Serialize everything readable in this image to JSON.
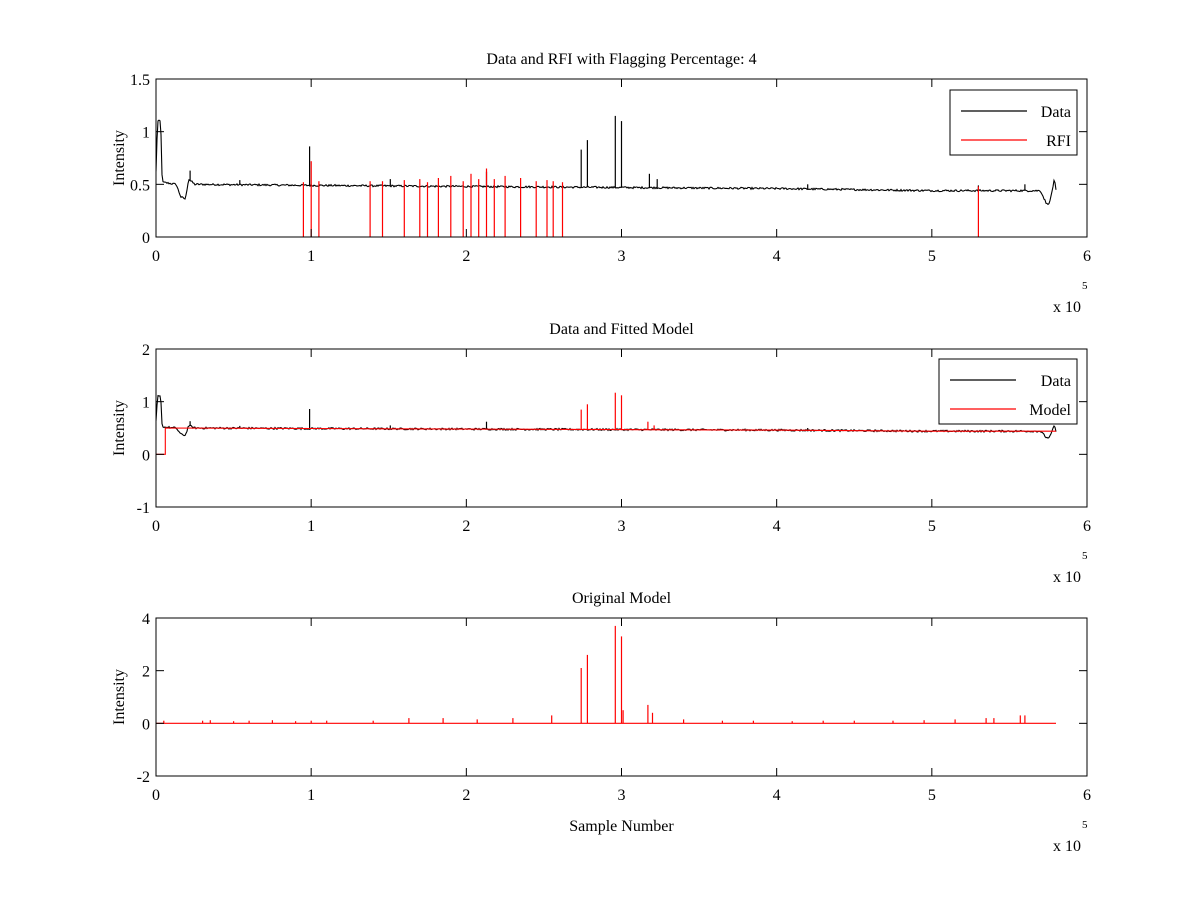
{
  "figure": {
    "background": "#ffffff"
  },
  "colors": {
    "data": "#000000",
    "rfi": "#ff0000",
    "model": "#ff0000"
  },
  "chart_data": [
    {
      "type": "line",
      "title": "Data and RFI with Flagging Percentage: 4",
      "xlabel": "",
      "ylabel": "Intensity",
      "xlim": [
        0,
        6
      ],
      "ylim": [
        0,
        1.5
      ],
      "x_ticks": [
        "0",
        "1",
        "2",
        "3",
        "4",
        "5",
        "6"
      ],
      "y_ticks": [
        "0",
        "0.5",
        "1",
        "1.5"
      ],
      "x_exponent_label": "x 10",
      "x_exponent_power": "5",
      "legend": {
        "position": "top-right",
        "entries": [
          "Data",
          "RFI"
        ]
      },
      "series": [
        {
          "name": "Data",
          "color": "#000000",
          "baseline": [
            [
              0,
              0.62
            ],
            [
              0.01,
              1.1
            ],
            [
              0.03,
              1.1
            ],
            [
              0.04,
              0.52
            ],
            [
              0.13,
              0.5
            ],
            [
              0.16,
              0.38
            ],
            [
              0.19,
              0.36
            ],
            [
              0.21,
              0.55
            ],
            [
              0.25,
              0.5
            ],
            [
              1,
              0.49
            ],
            [
              2,
              0.48
            ],
            [
              3,
              0.47
            ],
            [
              4,
              0.46
            ],
            [
              5,
              0.44
            ],
            [
              5.5,
              0.44
            ],
            [
              5.7,
              0.44
            ],
            [
              5.74,
              0.31
            ],
            [
              5.76,
              0.33
            ],
            [
              5.79,
              0.55
            ],
            [
              5.8,
              0.44
            ]
          ],
          "spikes": [
            [
              0.22,
              0.63
            ],
            [
              0.54,
              0.54
            ],
            [
              0.99,
              0.86
            ],
            [
              1.51,
              0.55
            ],
            [
              2.13,
              0.62
            ],
            [
              2.74,
              0.83
            ],
            [
              2.78,
              0.92
            ],
            [
              2.96,
              1.15
            ],
            [
              3.0,
              1.1
            ],
            [
              3.18,
              0.6
            ],
            [
              3.23,
              0.55
            ],
            [
              4.2,
              0.5
            ],
            [
              5.3,
              0.49
            ],
            [
              5.6,
              0.5
            ]
          ]
        },
        {
          "name": "RFI",
          "color": "#ff0000",
          "spikes": [
            [
              0.95,
              0.52
            ],
            [
              1.0,
              0.72
            ],
            [
              1.05,
              0.53
            ],
            [
              1.38,
              0.53
            ],
            [
              1.46,
              0.53
            ],
            [
              1.6,
              0.54
            ],
            [
              1.7,
              0.55
            ],
            [
              1.75,
              0.52
            ],
            [
              1.82,
              0.56
            ],
            [
              1.9,
              0.58
            ],
            [
              1.98,
              0.53
            ],
            [
              2.03,
              0.6
            ],
            [
              2.08,
              0.55
            ],
            [
              2.13,
              0.65
            ],
            [
              2.18,
              0.55
            ],
            [
              2.25,
              0.58
            ],
            [
              2.35,
              0.56
            ],
            [
              2.45,
              0.53
            ],
            [
              2.52,
              0.54
            ],
            [
              2.56,
              0.53
            ],
            [
              2.62,
              0.52
            ],
            [
              5.3,
              0.48
            ]
          ]
        }
      ]
    },
    {
      "type": "line",
      "title": "Data and Fitted Model",
      "xlabel": "",
      "ylabel": "Intensity",
      "xlim": [
        0,
        6
      ],
      "ylim": [
        -1,
        2
      ],
      "x_ticks": [
        "0",
        "1",
        "2",
        "3",
        "4",
        "5",
        "6"
      ],
      "y_ticks": [
        "-1",
        "0",
        "1",
        "2"
      ],
      "x_exponent_label": "x 10",
      "x_exponent_power": "5",
      "legend": {
        "position": "top-right",
        "entries": [
          "Data",
          "Model"
        ]
      },
      "series": [
        {
          "name": "Data",
          "color": "#000000",
          "baseline": [
            [
              0,
              0.62
            ],
            [
              0.01,
              1.1
            ],
            [
              0.03,
              1.1
            ],
            [
              0.04,
              0.52
            ],
            [
              0.13,
              0.5
            ],
            [
              0.16,
              0.38
            ],
            [
              0.19,
              0.36
            ],
            [
              0.21,
              0.55
            ],
            [
              0.25,
              0.5
            ],
            [
              1,
              0.49
            ],
            [
              2,
              0.48
            ],
            [
              3,
              0.47
            ],
            [
              4,
              0.46
            ],
            [
              5,
              0.44
            ],
            [
              5.5,
              0.44
            ],
            [
              5.7,
              0.44
            ],
            [
              5.74,
              0.31
            ],
            [
              5.76,
              0.33
            ],
            [
              5.79,
              0.55
            ],
            [
              5.8,
              0.44
            ]
          ],
          "spikes": [
            [
              0.22,
              0.63
            ],
            [
              0.54,
              0.54
            ],
            [
              0.99,
              0.86
            ],
            [
              1.51,
              0.55
            ],
            [
              2.13,
              0.62
            ],
            [
              4.2,
              0.5
            ]
          ]
        },
        {
          "name": "Model",
          "color": "#ff0000",
          "baseline": [
            [
              0,
              0.0
            ],
            [
              0.06,
              0.0
            ],
            [
              0.06,
              0.5
            ],
            [
              1,
              0.49
            ],
            [
              2,
              0.48
            ],
            [
              3,
              0.47
            ],
            [
              4,
              0.46
            ],
            [
              5,
              0.44
            ],
            [
              5.8,
              0.44
            ]
          ],
          "spikes": [
            [
              2.74,
              0.85
            ],
            [
              2.78,
              0.95
            ],
            [
              2.96,
              1.17
            ],
            [
              3.0,
              1.12
            ],
            [
              3.17,
              0.62
            ],
            [
              3.21,
              0.55
            ]
          ]
        }
      ]
    },
    {
      "type": "line",
      "title": "Original Model",
      "xlabel": "Sample Number",
      "ylabel": "Intensity",
      "xlim": [
        0,
        6
      ],
      "ylim": [
        -2,
        4
      ],
      "x_ticks": [
        "0",
        "1",
        "2",
        "3",
        "4",
        "5",
        "6"
      ],
      "y_ticks": [
        "-2",
        "0",
        "2",
        "4"
      ],
      "x_exponent_label": "x 10",
      "x_exponent_power": "5",
      "series": [
        {
          "color": "#ff0000",
          "baseline": [
            [
              0,
              0
            ],
            [
              5.8,
              0
            ]
          ],
          "spikes": [
            [
              0.05,
              0.1
            ],
            [
              0.3,
              0.1
            ],
            [
              0.35,
              0.12
            ],
            [
              0.5,
              0.08
            ],
            [
              0.6,
              0.1
            ],
            [
              0.75,
              0.12
            ],
            [
              0.9,
              0.08
            ],
            [
              1.0,
              0.1
            ],
            [
              1.1,
              0.1
            ],
            [
              1.4,
              0.1
            ],
            [
              1.63,
              0.2
            ],
            [
              1.85,
              0.2
            ],
            [
              2.07,
              0.15
            ],
            [
              2.3,
              0.2
            ],
            [
              2.55,
              0.3
            ],
            [
              2.74,
              2.1
            ],
            [
              2.78,
              2.6
            ],
            [
              2.96,
              3.7
            ],
            [
              3.0,
              3.3
            ],
            [
              3.01,
              0.5
            ],
            [
              3.17,
              0.7
            ],
            [
              3.2,
              0.4
            ],
            [
              3.4,
              0.15
            ],
            [
              3.65,
              0.1
            ],
            [
              3.85,
              0.1
            ],
            [
              4.1,
              0.08
            ],
            [
              4.3,
              0.1
            ],
            [
              4.5,
              0.1
            ],
            [
              4.75,
              0.1
            ],
            [
              4.95,
              0.12
            ],
            [
              5.15,
              0.15
            ],
            [
              5.35,
              0.2
            ],
            [
              5.4,
              0.2
            ],
            [
              5.57,
              0.3
            ],
            [
              5.6,
              0.3
            ]
          ]
        }
      ]
    }
  ]
}
